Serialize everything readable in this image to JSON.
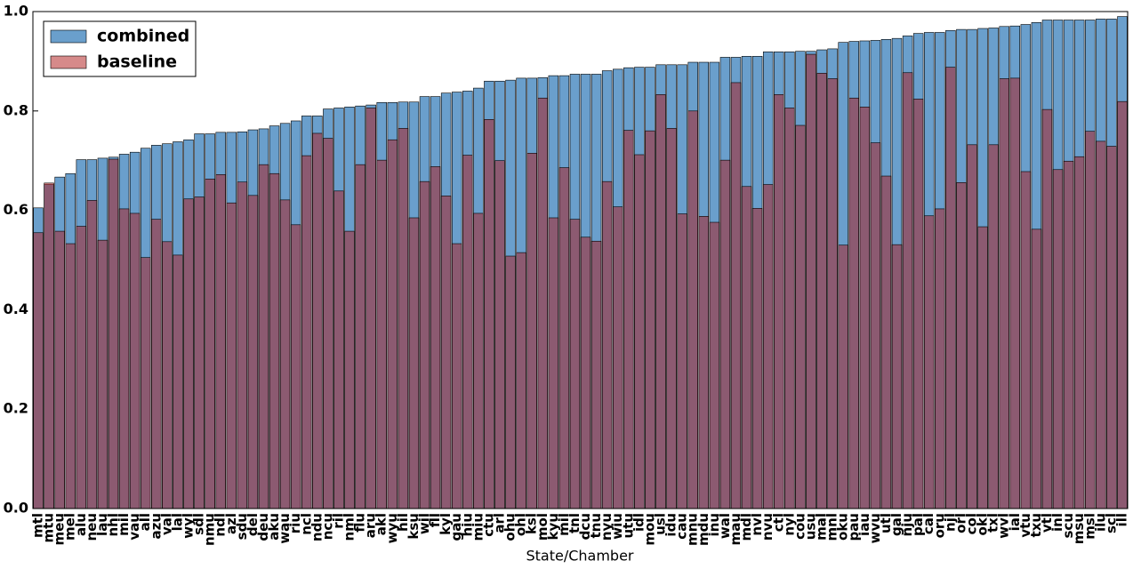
{
  "chart_data": {
    "type": "bar",
    "x_label": "State/Chamber",
    "categories": [
      "mtl",
      "mtu",
      "meu",
      "mel",
      "alu",
      "neu",
      "lau",
      "nhl",
      "mil",
      "vau",
      "all",
      "azu",
      "val",
      "lal",
      "wyl",
      "sdl",
      "nmu",
      "ndl",
      "azl",
      "sdu",
      "del",
      "deu",
      "aku",
      "wau",
      "riu",
      "ncl",
      "ndu",
      "ncu",
      "ril",
      "nml",
      "flu",
      "aru",
      "akl",
      "wyu",
      "hil",
      "ksu",
      "wil",
      "fll",
      "kyl",
      "gau",
      "hiu",
      "miu",
      "ctu",
      "arl",
      "ohu",
      "ohl",
      "ksl",
      "mol",
      "kyu",
      "mil",
      "tnl",
      "dcu",
      "tnu",
      "nyu",
      "wiu",
      "utu",
      "idl",
      "mou",
      "usl",
      "idu",
      "cau",
      "mnu",
      "mdu",
      "inu",
      "wal",
      "mau",
      "mdl",
      "nvl",
      "nvu",
      "ctl",
      "nyl",
      "cou",
      "usu",
      "mal",
      "mnl",
      "oku",
      "pau",
      "iau",
      "wvu",
      "utl",
      "gal",
      "nju",
      "pal",
      "cal",
      "oru",
      "njl",
      "orl",
      "col",
      "okl",
      "txl",
      "wvl",
      "ial",
      "vtu",
      "txu",
      "vtl",
      "inl",
      "scu",
      "msu",
      "msl",
      "ilu",
      "scl",
      "ill"
    ],
    "series": [
      {
        "name": "combined",
        "color": "#6a9fcc",
        "alpha": 1,
        "values": [
          0.605,
          0.652,
          0.667,
          0.674,
          0.702,
          0.702,
          0.705,
          0.707,
          0.713,
          0.717,
          0.725,
          0.731,
          0.734,
          0.738,
          0.742,
          0.754,
          0.754,
          0.757,
          0.757,
          0.758,
          0.762,
          0.764,
          0.77,
          0.775,
          0.78,
          0.79,
          0.79,
          0.804,
          0.806,
          0.808,
          0.81,
          0.812,
          0.817,
          0.817,
          0.818,
          0.818,
          0.829,
          0.829,
          0.836,
          0.838,
          0.84,
          0.846,
          0.86,
          0.86,
          0.862,
          0.866,
          0.866,
          0.867,
          0.871,
          0.871,
          0.874,
          0.874,
          0.874,
          0.881,
          0.884,
          0.887,
          0.888,
          0.888,
          0.893,
          0.893,
          0.893,
          0.898,
          0.898,
          0.898,
          0.908,
          0.908,
          0.91,
          0.91,
          0.919,
          0.919,
          0.919,
          0.92,
          0.92,
          0.923,
          0.925,
          0.938,
          0.94,
          0.941,
          0.942,
          0.944,
          0.946,
          0.951,
          0.956,
          0.958,
          0.958,
          0.962,
          0.964,
          0.964,
          0.966,
          0.967,
          0.97,
          0.971,
          0.974,
          0.978,
          0.983,
          0.983,
          0.983,
          0.983,
          0.983,
          0.985,
          0.985,
          0.99
        ]
      },
      {
        "name": "baseline",
        "color": "#ad1515",
        "alpha": 0.5,
        "values": [
          0.555,
          0.655,
          0.558,
          0.533,
          0.568,
          0.62,
          0.54,
          0.703,
          0.603,
          0.594,
          0.505,
          0.582,
          0.537,
          0.51,
          0.623,
          0.627,
          0.663,
          0.672,
          0.615,
          0.657,
          0.63,
          0.692,
          0.674,
          0.621,
          0.571,
          0.71,
          0.755,
          0.745,
          0.639,
          0.558,
          0.692,
          0.806,
          0.701,
          0.742,
          0.765,
          0.585,
          0.658,
          0.688,
          0.629,
          0.533,
          0.711,
          0.594,
          0.783,
          0.7,
          0.508,
          0.515,
          0.715,
          0.826,
          0.585,
          0.686,
          0.582,
          0.546,
          0.538,
          0.658,
          0.607,
          0.761,
          0.712,
          0.76,
          0.833,
          0.765,
          0.593,
          0.8,
          0.588,
          0.576,
          0.701,
          0.857,
          0.648,
          0.604,
          0.652,
          0.833,
          0.806,
          0.771,
          0.914,
          0.876,
          0.865,
          0.53,
          0.826,
          0.808,
          0.736,
          0.669,
          0.531,
          0.877,
          0.824,
          0.589,
          0.603,
          0.888,
          0.656,
          0.732,
          0.567,
          0.732,
          0.865,
          0.866,
          0.678,
          0.562,
          0.803,
          0.682,
          0.699,
          0.708,
          0.759,
          0.739,
          0.729,
          0.819
        ]
      }
    ],
    "ylim": [
      0,
      1
    ],
    "yticks": [
      {
        "value": 0,
        "label": "0.0"
      },
      {
        "value": 0.2,
        "label": "0.2"
      },
      {
        "value": 0.4,
        "label": "0.4"
      },
      {
        "value": 0.6,
        "label": "0.6"
      },
      {
        "value": 0.8,
        "label": "0.8"
      },
      {
        "value": 1,
        "label": "1.0"
      }
    ],
    "grid": false,
    "legend": "upper left"
  }
}
